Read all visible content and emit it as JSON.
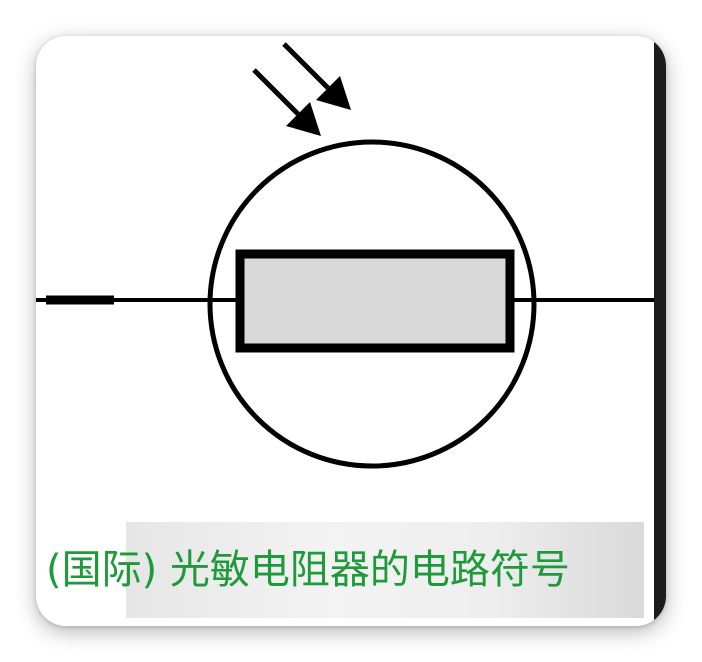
{
  "caption": {
    "text": "(国际) 光敏电阻器的电路符号",
    "color": "#1f9a3a"
  },
  "symbol": {
    "type": "photoresistor",
    "stroke_color": "#000000",
    "resistor_fill": "#d9d9d9",
    "light_arrows": 2
  }
}
